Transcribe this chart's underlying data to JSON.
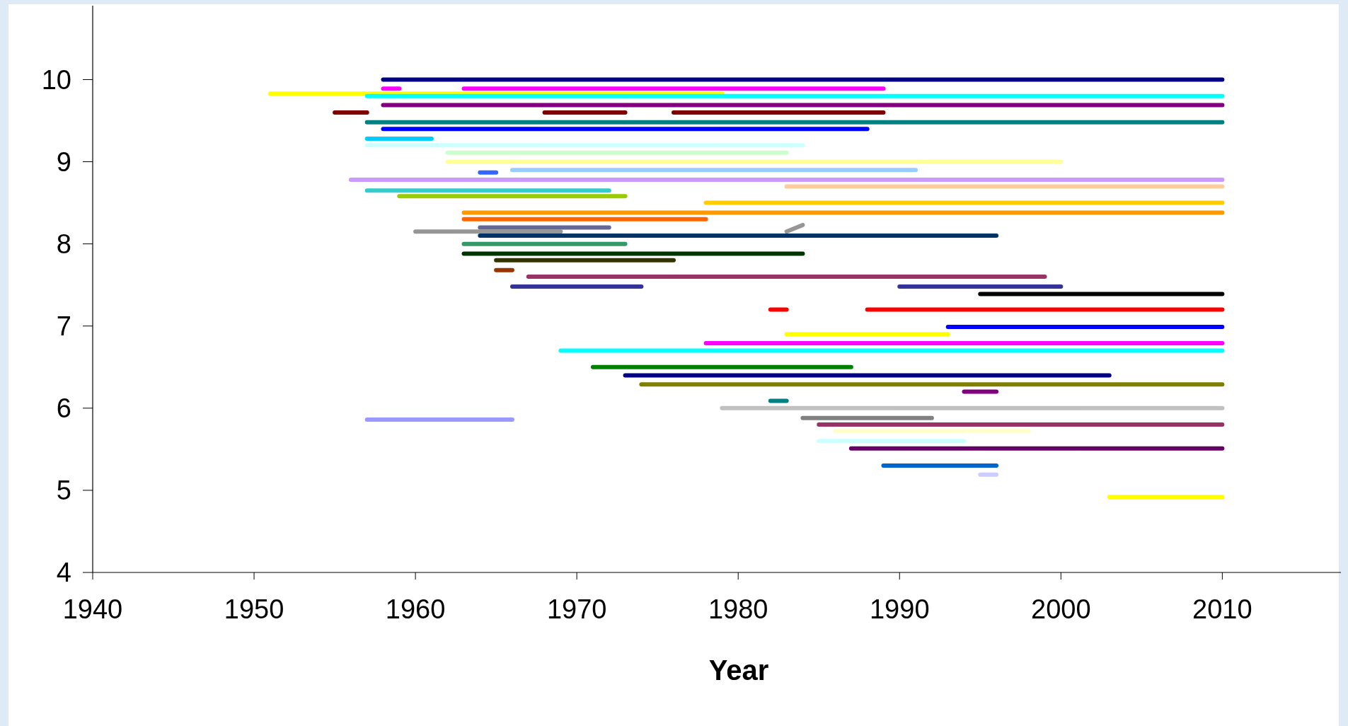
{
  "chart_data": {
    "type": "line",
    "xlabel": "Year",
    "xlim": [
      1940,
      2017
    ],
    "xticks": [
      1940,
      1950,
      1960,
      1970,
      1980,
      1990,
      2000,
      2010
    ],
    "ylim": [
      4,
      10.9
    ],
    "yticks": [
      4,
      5,
      6,
      7,
      8,
      9,
      10
    ],
    "grid": false,
    "marker": "none",
    "line_style": "solid",
    "series": [
      {
        "color": "#000080",
        "x": [
          1958,
          2010
        ],
        "values": [
          10,
          10
        ]
      },
      {
        "color": "#ff00ff",
        "x": [
          1958,
          1959
        ],
        "values": [
          9.89,
          9.89
        ]
      },
      {
        "color": "#ff00ff",
        "x": [
          1963,
          1989
        ],
        "values": [
          9.89,
          9.89
        ]
      },
      {
        "color": "#ffff00",
        "x": [
          1951,
          1979
        ],
        "values": [
          9.83,
          9.83
        ]
      },
      {
        "color": "#00ffff",
        "x": [
          1957,
          2010
        ],
        "values": [
          9.8,
          9.8
        ]
      },
      {
        "color": "#800080",
        "x": [
          1958,
          2010
        ],
        "values": [
          9.69,
          9.69
        ]
      },
      {
        "color": "#800000",
        "x": [
          1955,
          1957
        ],
        "values": [
          9.6,
          9.6
        ]
      },
      {
        "color": "#800000",
        "x": [
          1968,
          1973
        ],
        "values": [
          9.6,
          9.6
        ]
      },
      {
        "color": "#800000",
        "x": [
          1976,
          1989
        ],
        "values": [
          9.6,
          9.6
        ]
      },
      {
        "color": "#008080",
        "x": [
          1957,
          2010
        ],
        "values": [
          9.48,
          9.48
        ]
      },
      {
        "color": "#0000ff",
        "x": [
          1958,
          1988
        ],
        "values": [
          9.4,
          9.4
        ]
      },
      {
        "color": "#00ccff",
        "x": [
          1957,
          1961
        ],
        "values": [
          9.28,
          9.28
        ]
      },
      {
        "color": "#ccffff",
        "x": [
          1957,
          1984
        ],
        "values": [
          9.2,
          9.2
        ]
      },
      {
        "color": "#ccffcc",
        "x": [
          1962,
          1983
        ],
        "values": [
          9.11,
          9.11
        ]
      },
      {
        "color": "#ffff99",
        "x": [
          1962,
          2000
        ],
        "values": [
          9,
          9
        ]
      },
      {
        "color": "#99ccff",
        "x": [
          1966,
          1991
        ],
        "values": [
          8.9,
          8.9
        ]
      },
      {
        "color": "#3366ff",
        "x": [
          1964,
          1965
        ],
        "values": [
          8.87,
          8.87
        ]
      },
      {
        "color": "#cc99ff",
        "x": [
          1956,
          2010
        ],
        "values": [
          8.78,
          8.78
        ]
      },
      {
        "color": "#ffcc99",
        "x": [
          1983,
          2010
        ],
        "values": [
          8.7,
          8.7
        ]
      },
      {
        "color": "#33cccc",
        "x": [
          1957,
          1972
        ],
        "values": [
          8.65,
          8.65
        ]
      },
      {
        "color": "#99cc00",
        "x": [
          1959,
          1973
        ],
        "values": [
          8.58,
          8.58
        ]
      },
      {
        "color": "#ffcc00",
        "x": [
          1978,
          2010
        ],
        "values": [
          8.5,
          8.5
        ]
      },
      {
        "color": "#ff9900",
        "x": [
          1963,
          2010
        ],
        "values": [
          8.38,
          8.38
        ]
      },
      {
        "color": "#ff6600",
        "x": [
          1963,
          1978
        ],
        "values": [
          8.3,
          8.3
        ]
      },
      {
        "color": "#666699",
        "x": [
          1964,
          1972
        ],
        "values": [
          8.2,
          8.2
        ]
      },
      {
        "color": "#969696",
        "x": [
          1960,
          1969
        ],
        "values": [
          8.15,
          8.15
        ]
      },
      {
        "color": "#969696",
        "x": [
          1983,
          1984
        ],
        "values": [
          8.15,
          8.23
        ]
      },
      {
        "color": "#003366",
        "x": [
          1964,
          1996
        ],
        "values": [
          8.1,
          8.1
        ]
      },
      {
        "color": "#339966",
        "x": [
          1963,
          1973
        ],
        "values": [
          8,
          8
        ]
      },
      {
        "color": "#003300",
        "x": [
          1963,
          1984
        ],
        "values": [
          7.88,
          7.88
        ]
      },
      {
        "color": "#333300",
        "x": [
          1965,
          1976
        ],
        "values": [
          7.8,
          7.8
        ]
      },
      {
        "color": "#993300",
        "x": [
          1965,
          1966
        ],
        "values": [
          7.68,
          7.68
        ]
      },
      {
        "color": "#993366",
        "x": [
          1967,
          1999
        ],
        "values": [
          7.6,
          7.6
        ]
      },
      {
        "color": "#333399",
        "x": [
          1966,
          1974
        ],
        "values": [
          7.48,
          7.48
        ]
      },
      {
        "color": "#333399",
        "x": [
          1990,
          2000
        ],
        "values": [
          7.48,
          7.48
        ]
      },
      {
        "color": "#000000",
        "x": [
          1995,
          2010
        ],
        "values": [
          7.39,
          7.39
        ]
      },
      {
        "color": "#ff0000",
        "x": [
          1982,
          1983
        ],
        "values": [
          7.2,
          7.2
        ]
      },
      {
        "color": "#ff0000",
        "x": [
          1988,
          2010
        ],
        "values": [
          7.2,
          7.2
        ]
      },
      {
        "color": "#0000ff",
        "x": [
          1993,
          2010
        ],
        "values": [
          6.99,
          6.99
        ]
      },
      {
        "color": "#ffff00",
        "x": [
          1983,
          1993
        ],
        "values": [
          6.9,
          6.9
        ]
      },
      {
        "color": "#ff00ff",
        "x": [
          1978,
          2010
        ],
        "values": [
          6.79,
          6.79
        ]
      },
      {
        "color": "#00ffff",
        "x": [
          1969,
          2010
        ],
        "values": [
          6.7,
          6.7
        ]
      },
      {
        "color": "#008000",
        "x": [
          1971,
          1987
        ],
        "values": [
          6.5,
          6.5
        ]
      },
      {
        "color": "#000080",
        "x": [
          1973,
          2003
        ],
        "values": [
          6.4,
          6.4
        ]
      },
      {
        "color": "#808000",
        "x": [
          1974,
          2010
        ],
        "values": [
          6.29,
          6.29
        ]
      },
      {
        "color": "#800080",
        "x": [
          1994,
          1996
        ],
        "values": [
          6.2,
          6.2
        ]
      },
      {
        "color": "#008080",
        "x": [
          1982,
          1983
        ],
        "values": [
          6.09,
          6.09
        ]
      },
      {
        "color": "#c0c0c0",
        "x": [
          1979,
          2010
        ],
        "values": [
          6,
          6
        ]
      },
      {
        "color": "#808080",
        "x": [
          1984,
          1992
        ],
        "values": [
          5.88,
          5.88
        ]
      },
      {
        "color": "#9999ff",
        "x": [
          1957,
          1966
        ],
        "values": [
          5.86,
          5.86
        ]
      },
      {
        "color": "#993366",
        "x": [
          1985,
          2010
        ],
        "values": [
          5.8,
          5.8
        ]
      },
      {
        "color": "#ffffcc",
        "x": [
          1986,
          1998
        ],
        "values": [
          5.72,
          5.72
        ]
      },
      {
        "color": "#ccffff",
        "x": [
          1985,
          1994
        ],
        "values": [
          5.6,
          5.6
        ]
      },
      {
        "color": "#660066",
        "x": [
          1987,
          2010
        ],
        "values": [
          5.51,
          5.51
        ]
      },
      {
        "color": "#0066cc",
        "x": [
          1989,
          1996
        ],
        "values": [
          5.3,
          5.3
        ]
      },
      {
        "color": "#ccccff",
        "x": [
          1995,
          1996
        ],
        "values": [
          5.19,
          5.19
        ]
      },
      {
        "color": "#ffff00",
        "x": [
          2003,
          2010
        ],
        "values": [
          4.92,
          4.92
        ]
      }
    ]
  }
}
